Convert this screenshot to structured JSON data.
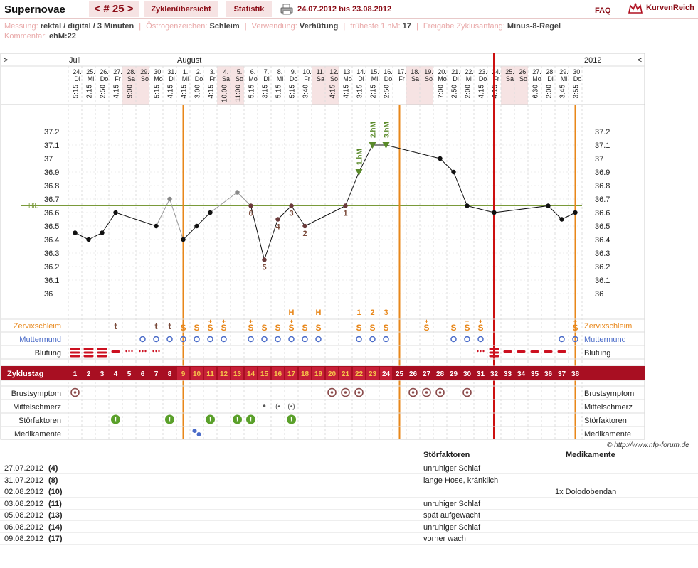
{
  "header": {
    "title": "Supernovae",
    "cycle_nav": "< # 25 >",
    "overview_label": "Zyklenübersicht",
    "stats_label": "Statistik",
    "date_range": "24.07.2012 bis 23.08.2012",
    "faq": "FAQ",
    "brand": "KurvenReich"
  },
  "info": {
    "measurement_label": "Messung:",
    "measurement_value": "rektal / digital / 3 Minuten",
    "estrogen_label": "Östrogenzeichen:",
    "estrogen_value": "Schleim",
    "usage_label": "Verwendung:",
    "usage_value": "Verhütung",
    "earliest_label": "früheste 1.hM:",
    "earliest_value": "17",
    "release_label": "Freigabe Zyklusanfang:",
    "release_value": "Minus-8-Regel",
    "comment_label": "Kommentar:",
    "comment_value": "ehM:22"
  },
  "chart_data": {
    "type": "line",
    "title": "",
    "ylabel": "",
    "ylim": [
      36.0,
      37.2
    ],
    "y_ticks": [
      "37.2",
      "37.1",
      "37",
      "36.9",
      "36.8",
      "36.7",
      "36.6",
      "36.5",
      "36.4",
      "36.3",
      "36.2",
      "36.1",
      "36"
    ],
    "hil_label": "HiL",
    "hil_value": 36.65,
    "year": "2012",
    "nav_left": ">",
    "nav_right": "<",
    "month_labels": [
      {
        "day": 1,
        "text": "Juli"
      },
      {
        "day": 9,
        "text": "August"
      }
    ],
    "days": [
      {
        "cd": 1,
        "date": "24.",
        "wd": "Di",
        "time": "5:15",
        "temp": 36.45,
        "we": false
      },
      {
        "cd": 2,
        "date": "25.",
        "wd": "Mi",
        "time": "2:15",
        "temp": 36.4,
        "we": false
      },
      {
        "cd": 3,
        "date": "26.",
        "wd": "Do",
        "time": "2:50",
        "temp": 36.45,
        "we": false
      },
      {
        "cd": 4,
        "date": "27.",
        "wd": "Fr",
        "time": "4:15",
        "temp": 36.6,
        "we": false
      },
      {
        "cd": 5,
        "date": "28.",
        "wd": "Sa",
        "time": "9:00",
        "temp": null,
        "we": true
      },
      {
        "cd": 6,
        "date": "29.",
        "wd": "So",
        "time": "",
        "temp": null,
        "we": true
      },
      {
        "cd": 7,
        "date": "30.",
        "wd": "Mo",
        "time": "5:15",
        "temp": 36.5,
        "we": false
      },
      {
        "cd": 8,
        "date": "31.",
        "wd": "Di",
        "time": "4:15",
        "temp": 36.7,
        "we": false,
        "excluded": true
      },
      {
        "cd": 9,
        "date": "1.",
        "wd": "Mi",
        "time": "4:15",
        "temp": 36.4,
        "we": false
      },
      {
        "cd": 10,
        "date": "2.",
        "wd": "Do",
        "time": "3:00",
        "temp": 36.5,
        "we": false
      },
      {
        "cd": 11,
        "date": "3.",
        "wd": "Fr",
        "time": "4:15",
        "temp": 36.6,
        "we": false
      },
      {
        "cd": 12,
        "date": "4.",
        "wd": "Sa",
        "time": "10:00",
        "temp": null,
        "we": true
      },
      {
        "cd": 13,
        "date": "5.",
        "wd": "So",
        "time": "11:00",
        "temp": 36.75,
        "we": true,
        "excluded": true
      },
      {
        "cd": 14,
        "date": "6.",
        "wd": "Mo",
        "time": "5:15",
        "temp": 36.65,
        "we": false,
        "label": "6"
      },
      {
        "cd": 15,
        "date": "7.",
        "wd": "Di",
        "time": "3:15",
        "temp": 36.25,
        "we": false,
        "label": "5"
      },
      {
        "cd": 16,
        "date": "8.",
        "wd": "Mi",
        "time": "5:15",
        "temp": 36.55,
        "we": false,
        "label": "4"
      },
      {
        "cd": 17,
        "date": "9.",
        "wd": "Do",
        "time": "5:15",
        "temp": 36.65,
        "we": false,
        "label": "3"
      },
      {
        "cd": 18,
        "date": "10.",
        "wd": "Fr",
        "time": "3:40",
        "temp": 36.5,
        "we": false,
        "label": "2"
      },
      {
        "cd": 19,
        "date": "11.",
        "wd": "Sa",
        "time": "",
        "temp": null,
        "we": true
      },
      {
        "cd": 20,
        "date": "12.",
        "wd": "So",
        "time": "4:15",
        "temp": null,
        "we": true
      },
      {
        "cd": 21,
        "date": "13.",
        "wd": "Mo",
        "time": "4:15",
        "temp": 36.65,
        "we": false,
        "label": "1"
      },
      {
        "cd": 22,
        "date": "14.",
        "wd": "Di",
        "time": "3:15",
        "temp": 36.9,
        "we": false,
        "hm": "1.hM"
      },
      {
        "cd": 23,
        "date": "15.",
        "wd": "Mi",
        "time": "2:15",
        "temp": 37.1,
        "we": false,
        "hm": "2.hM"
      },
      {
        "cd": 24,
        "date": "16.",
        "wd": "Do",
        "time": "2:50",
        "temp": 37.1,
        "we": false,
        "hm": "3.hM"
      },
      {
        "cd": 25,
        "date": "17.",
        "wd": "Fr",
        "time": "",
        "temp": null,
        "we": false
      },
      {
        "cd": 26,
        "date": "18.",
        "wd": "Sa",
        "time": "",
        "temp": null,
        "we": true
      },
      {
        "cd": 27,
        "date": "19.",
        "wd": "So",
        "time": "",
        "temp": null,
        "we": true
      },
      {
        "cd": 28,
        "date": "20.",
        "wd": "Mo",
        "time": "7:00",
        "temp": 37.0,
        "we": false
      },
      {
        "cd": 29,
        "date": "21.",
        "wd": "Di",
        "time": "2:50",
        "temp": 36.9,
        "we": false
      },
      {
        "cd": 30,
        "date": "22.",
        "wd": "Mi",
        "time": "2:00",
        "temp": 36.65,
        "we": false
      },
      {
        "cd": 31,
        "date": "23.",
        "wd": "Do",
        "time": "4:15",
        "temp": null,
        "we": false
      },
      {
        "cd": 32,
        "date": "24.",
        "wd": "Fr",
        "time": "4:15",
        "temp": 36.6,
        "we": false
      },
      {
        "cd": 33,
        "date": "25.",
        "wd": "Sa",
        "time": "",
        "temp": null,
        "we": true
      },
      {
        "cd": 34,
        "date": "26.",
        "wd": "So",
        "time": "",
        "temp": null,
        "we": true
      },
      {
        "cd": 35,
        "date": "27.",
        "wd": "Mo",
        "time": "6:30",
        "temp": null,
        "we": false
      },
      {
        "cd": 36,
        "date": "28.",
        "wd": "Di",
        "time": "2:00",
        "temp": 36.65,
        "we": false
      },
      {
        "cd": 37,
        "date": "29.",
        "wd": "Mi",
        "time": "3:45",
        "temp": 36.55,
        "we": false
      },
      {
        "cd": 38,
        "date": "30.",
        "wd": "Do",
        "time": "3:55",
        "temp": 36.6,
        "we": false
      }
    ],
    "cervical_mucus": {
      "4": "t",
      "7": "t",
      "8": "t",
      "9": "S",
      "10": "S",
      "11": "S+",
      "12": "S+",
      "14": "S+",
      "15": "S",
      "16": "S",
      "17": "S+",
      "18": "S",
      "19": "S",
      "22": "S",
      "23": "S",
      "24": "S",
      "27": "S+",
      "29": "S",
      "30": "S+",
      "31": "S+",
      "38": "S+"
    },
    "peak_markers": {
      "17": "H",
      "19": "H",
      "22": "1",
      "23": "2",
      "24": "3"
    },
    "cervix_days": [
      6,
      7,
      8,
      9,
      10,
      11,
      12,
      14,
      15,
      16,
      17,
      18,
      19,
      22,
      23,
      24,
      29,
      30,
      31,
      37,
      38
    ],
    "bleeding": {
      "1": "heavy",
      "2": "heavy",
      "3": "heavy",
      "4": "medium",
      "5": "spot",
      "6": "spot",
      "7": "spot",
      "31": "spot",
      "32": "heavy",
      "33": "medium",
      "34": "medium",
      "35": "medium",
      "36": "medium",
      "37": "medium"
    },
    "breast_days": [
      1,
      20,
      21,
      22,
      26,
      27,
      28,
      30
    ],
    "mittelschmerz_days": [
      15,
      16,
      17
    ],
    "disturbance_days": [
      4,
      8,
      11,
      13,
      14,
      17
    ],
    "medication_days": [
      10
    ],
    "vlines": {
      "orange": [
        8.5,
        24.5,
        37.5
      ],
      "red": [
        31.5
      ]
    },
    "row_labels": {
      "zervix": "Zervixschleim",
      "mumu": "Muttermund",
      "blut": "Blutung",
      "zyklustag": "Zyklustag",
      "brust": "Brustsymptom",
      "mittel": "Mittelschmerz",
      "stoer": "Störfaktoren",
      "medi": "Medikamente"
    }
  },
  "copyright": "© http://www.nfp-forum.de",
  "notes": {
    "header_stoer": "Störfaktoren",
    "header_med": "Medikamente",
    "rows": [
      {
        "date": "27.07.2012",
        "day": "(4)",
        "stoer": "unruhiger Schlaf",
        "med": ""
      },
      {
        "date": "31.07.2012",
        "day": "(8)",
        "stoer": "lange Hose, kränklich",
        "med": ""
      },
      {
        "date": "02.08.2012",
        "day": "(10)",
        "stoer": "",
        "med": "1x Dolodobendan"
      },
      {
        "date": "03.08.2012",
        "day": "(11)",
        "stoer": "unruhiger Schlaf",
        "med": ""
      },
      {
        "date": "05.08.2012",
        "day": "(13)",
        "stoer": "spät aufgewacht",
        "med": ""
      },
      {
        "date": "06.08.2012",
        "day": "(14)",
        "stoer": "unruhiger Schlaf",
        "med": ""
      },
      {
        "date": "09.08.2012",
        "day": "(17)",
        "stoer": "vorher wach",
        "med": ""
      }
    ]
  }
}
